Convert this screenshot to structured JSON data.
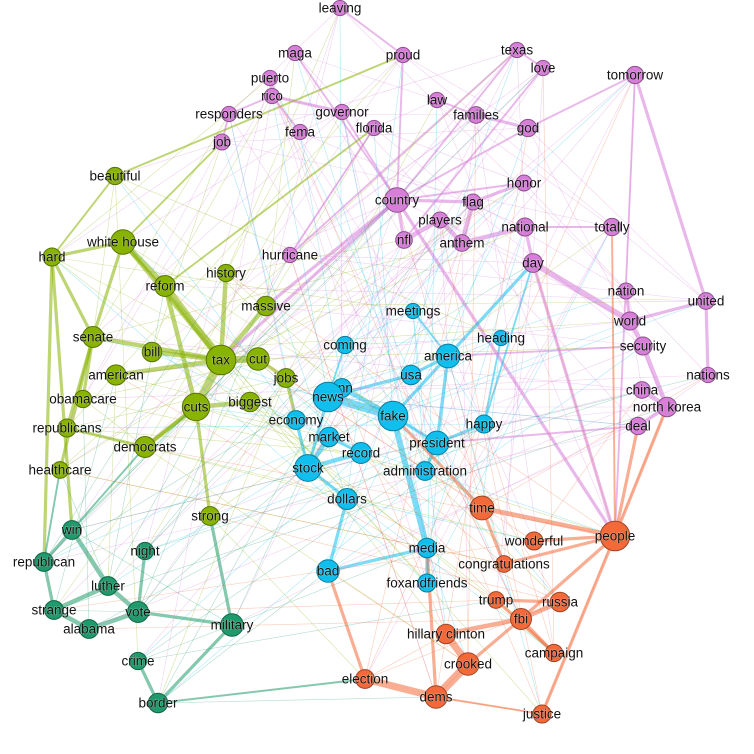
{
  "groups": {
    "purple": "#d77ed8",
    "green": "#88b300",
    "teal": "#1f9a6c",
    "blue": "#10bfee",
    "orange": "#f4693a"
  },
  "nodes": [
    {
      "label": "leaving",
      "group": "purple",
      "weight": 1
    },
    {
      "label": "maga",
      "group": "purple",
      "weight": 1
    },
    {
      "label": "proud",
      "group": "purple",
      "weight": 1
    },
    {
      "label": "texas",
      "group": "purple",
      "weight": 1
    },
    {
      "label": "love",
      "group": "purple",
      "weight": 1
    },
    {
      "label": "tomorrow",
      "group": "purple",
      "weight": 1.3
    },
    {
      "label": "puerto",
      "group": "purple",
      "weight": 1
    },
    {
      "label": "rico",
      "group": "purple",
      "weight": 1
    },
    {
      "label": "responders",
      "group": "purple",
      "weight": 1
    },
    {
      "label": "governor",
      "group": "purple",
      "weight": 1
    },
    {
      "label": "law",
      "group": "purple",
      "weight": 1
    },
    {
      "label": "families",
      "group": "purple",
      "weight": 1.2
    },
    {
      "label": "god",
      "group": "purple",
      "weight": 1.3
    },
    {
      "label": "fema",
      "group": "purple",
      "weight": 1
    },
    {
      "label": "florida",
      "group": "purple",
      "weight": 1
    },
    {
      "label": "job",
      "group": "purple",
      "weight": 1.1
    },
    {
      "label": "honor",
      "group": "purple",
      "weight": 1.1
    },
    {
      "label": "country",
      "group": "purple",
      "weight": 2.3
    },
    {
      "label": "flag",
      "group": "purple",
      "weight": 1.1
    },
    {
      "label": "players",
      "group": "purple",
      "weight": 1.1
    },
    {
      "label": "nfl",
      "group": "purple",
      "weight": 1.2
    },
    {
      "label": "anthem",
      "group": "purple",
      "weight": 1.2
    },
    {
      "label": "national",
      "group": "purple",
      "weight": 1.4
    },
    {
      "label": "totally",
      "group": "purple",
      "weight": 1.3
    },
    {
      "label": "day",
      "group": "purple",
      "weight": 1.5
    },
    {
      "label": "hurricane",
      "group": "purple",
      "weight": 1
    },
    {
      "label": "nation",
      "group": "purple",
      "weight": 1.1
    },
    {
      "label": "united",
      "group": "purple",
      "weight": 1.2
    },
    {
      "label": "world",
      "group": "purple",
      "weight": 1.4
    },
    {
      "label": "security",
      "group": "purple",
      "weight": 1.4
    },
    {
      "label": "nations",
      "group": "purple",
      "weight": 1
    },
    {
      "label": "china",
      "group": "purple",
      "weight": 1.2
    },
    {
      "label": "north korea",
      "group": "purple",
      "weight": 1.6
    },
    {
      "label": "deal",
      "group": "purple",
      "weight": 1.3
    },
    {
      "label": "beautiful",
      "group": "green",
      "weight": 1.3
    },
    {
      "label": "white house",
      "group": "green",
      "weight": 2.3
    },
    {
      "label": "hard",
      "group": "green",
      "weight": 1.4
    },
    {
      "label": "history",
      "group": "green",
      "weight": 1.3
    },
    {
      "label": "reform",
      "group": "green",
      "weight": 1.8
    },
    {
      "label": "massive",
      "group": "green",
      "weight": 1.6
    },
    {
      "label": "senate",
      "group": "green",
      "weight": 1.8
    },
    {
      "label": "bill",
      "group": "green",
      "weight": 1.6
    },
    {
      "label": "tax",
      "group": "green",
      "weight": 3
    },
    {
      "label": "cut",
      "group": "green",
      "weight": 2
    },
    {
      "label": "jobs",
      "group": "green",
      "weight": 1.5
    },
    {
      "label": "american",
      "group": "green",
      "weight": 1.7
    },
    {
      "label": "obamacare",
      "group": "green",
      "weight": 1.3
    },
    {
      "label": "cuts",
      "group": "green",
      "weight": 2.7
    },
    {
      "label": "biggest",
      "group": "green",
      "weight": 1.6
    },
    {
      "label": "republicans",
      "group": "green",
      "weight": 1.4
    },
    {
      "label": "democrats",
      "group": "green",
      "weight": 1.8
    },
    {
      "label": "healthcare",
      "group": "green",
      "weight": 1.2
    },
    {
      "label": "strong",
      "group": "green",
      "weight": 1.5
    },
    {
      "label": "win",
      "group": "teal",
      "weight": 1.5
    },
    {
      "label": "republican",
      "group": "teal",
      "weight": 1.5
    },
    {
      "label": "night",
      "group": "teal",
      "weight": 1.3
    },
    {
      "label": "luther",
      "group": "teal",
      "weight": 1.5
    },
    {
      "label": "strange",
      "group": "teal",
      "weight": 1.5
    },
    {
      "label": "vote",
      "group": "teal",
      "weight": 1.8
    },
    {
      "label": "alabama",
      "group": "teal",
      "weight": 1.5
    },
    {
      "label": "military",
      "group": "teal",
      "weight": 2
    },
    {
      "label": "crime",
      "group": "teal",
      "weight": 1.3
    },
    {
      "label": "border",
      "group": "teal",
      "weight": 1.6
    },
    {
      "label": "coming",
      "group": "blue",
      "weight": 1.3
    },
    {
      "label": "america",
      "group": "blue",
      "weight": 2.2
    },
    {
      "label": "usa",
      "group": "blue",
      "weight": 1.6
    },
    {
      "label": "cnn",
      "group": "blue",
      "weight": 1.5
    },
    {
      "label": "news",
      "group": "blue",
      "weight": 3
    },
    {
      "label": "fake",
      "group": "blue",
      "weight": 3
    },
    {
      "label": "economy",
      "group": "blue",
      "weight": 1.5
    },
    {
      "label": "market",
      "group": "blue",
      "weight": 1.6
    },
    {
      "label": "record",
      "group": "blue",
      "weight": 1.8
    },
    {
      "label": "president",
      "group": "blue",
      "weight": 2.2
    },
    {
      "label": "happy",
      "group": "blue",
      "weight": 1.4
    },
    {
      "label": "heading",
      "group": "blue",
      "weight": 1
    },
    {
      "label": "meetings",
      "group": "blue",
      "weight": 1
    },
    {
      "label": "administration",
      "group": "blue",
      "weight": 1.5
    },
    {
      "label": "stock",
      "group": "blue",
      "weight": 2.6
    },
    {
      "label": "dollars",
      "group": "blue",
      "weight": 1.8
    },
    {
      "label": "media",
      "group": "blue",
      "weight": 1.6
    },
    {
      "label": "bad",
      "group": "blue",
      "weight": 2
    },
    {
      "label": "foxandfriends",
      "group": "blue",
      "weight": 1.4
    },
    {
      "label": "time",
      "group": "orange",
      "weight": 2.2
    },
    {
      "label": "people",
      "group": "orange",
      "weight": 3
    },
    {
      "label": "wonderful",
      "group": "orange",
      "weight": 1.4
    },
    {
      "label": "congratulations",
      "group": "orange",
      "weight": 1.2
    },
    {
      "label": "trump",
      "group": "orange",
      "weight": 1.2
    },
    {
      "label": "russia",
      "group": "orange",
      "weight": 1.6
    },
    {
      "label": "fbi",
      "group": "orange",
      "weight": 1.8
    },
    {
      "label": "hillary clinton",
      "group": "orange",
      "weight": 1.6
    },
    {
      "label": "campaign",
      "group": "orange",
      "weight": 1.3
    },
    {
      "label": "crooked",
      "group": "orange",
      "weight": 2
    },
    {
      "label": "election",
      "group": "orange",
      "weight": 1.5
    },
    {
      "label": "dems",
      "group": "orange",
      "weight": 2
    },
    {
      "label": "justice",
      "group": "orange",
      "weight": 1.4
    }
  ],
  "edges": [
    [
      "tax",
      "cuts",
      6
    ],
    [
      "tax",
      "reform",
      5
    ],
    [
      "tax",
      "cut",
      5
    ],
    [
      "cuts",
      "biggest",
      3
    ],
    [
      "tax",
      "bill",
      3
    ],
    [
      "tax",
      "massive",
      3
    ],
    [
      "tax",
      "senate",
      3
    ],
    [
      "tax",
      "american",
      3
    ],
    [
      "tax",
      "history",
      3
    ],
    [
      "cuts",
      "democrats",
      3
    ],
    [
      "cuts",
      "reform",
      3
    ],
    [
      "white house",
      "reform",
      4
    ],
    [
      "white house",
      "tax",
      3
    ],
    [
      "white house",
      "hard",
      2
    ],
    [
      "white house",
      "senate",
      2
    ],
    [
      "hard",
      "win",
      2
    ],
    [
      "hard",
      "republican",
      2
    ],
    [
      "hard",
      "senate",
      2
    ],
    [
      "hard",
      "beautiful",
      1
    ],
    [
      "senate",
      "republicans",
      2
    ],
    [
      "senate",
      "obamacare",
      2
    ],
    [
      "senate",
      "healthcare",
      2
    ],
    [
      "republicans",
      "democrats",
      2
    ],
    [
      "democrats",
      "cuts",
      2
    ],
    [
      "jobs",
      "cut",
      2
    ],
    [
      "jobs",
      "economy",
      2
    ],
    [
      "economy",
      "stock",
      2
    ],
    [
      "market",
      "stock",
      3
    ],
    [
      "stock",
      "record",
      3
    ],
    [
      "stock",
      "dollars",
      2
    ],
    [
      "stock",
      "news",
      2
    ],
    [
      "fake",
      "news",
      6
    ],
    [
      "fake",
      "cnn",
      3
    ],
    [
      "fake",
      "media",
      4
    ],
    [
      "fake",
      "president",
      2
    ],
    [
      "news",
      "cnn",
      3
    ],
    [
      "news",
      "usa",
      2
    ],
    [
      "america",
      "usa",
      2
    ],
    [
      "america",
      "fake",
      2
    ],
    [
      "america",
      "president",
      2
    ],
    [
      "president",
      "administration",
      2
    ],
    [
      "president",
      "happy",
      2
    ],
    [
      "record",
      "market",
      2
    ],
    [
      "bad",
      "media",
      2
    ],
    [
      "bad",
      "dollars",
      2
    ],
    [
      "media",
      "foxandfriends",
      2
    ],
    [
      "coming",
      "news",
      1
    ],
    [
      "meetings",
      "america",
      1
    ],
    [
      "heading",
      "happy",
      1
    ],
    [
      "dems",
      "crooked",
      6
    ],
    [
      "dems",
      "election",
      5
    ],
    [
      "crooked",
      "hillary clinton",
      5
    ],
    [
      "hillary clinton",
      "fbi",
      3
    ],
    [
      "fbi",
      "russia",
      3
    ],
    [
      "trump",
      "russia",
      2
    ],
    [
      "trump",
      "campaign",
      2
    ],
    [
      "fbi",
      "campaign",
      2
    ],
    [
      "time",
      "people",
      3
    ],
    [
      "people",
      "wonderful",
      2
    ],
    [
      "people",
      "congratulations",
      2
    ],
    [
      "people",
      "fbi",
      2
    ],
    [
      "people",
      "deal",
      2
    ],
    [
      "people",
      "north korea",
      2
    ],
    [
      "people",
      "justice",
      2
    ],
    [
      "time",
      "congratulations",
      2
    ],
    [
      "time",
      "fake",
      2
    ],
    [
      "dems",
      "justice",
      1
    ],
    [
      "election",
      "bad",
      2
    ],
    [
      "dems",
      "media",
      2
    ],
    [
      "crooked",
      "fbi",
      2
    ],
    [
      "win",
      "luther",
      3
    ],
    [
      "luther",
      "strange",
      3
    ],
    [
      "strange",
      "alabama",
      3
    ],
    [
      "vote",
      "alabama",
      3
    ],
    [
      "vote",
      "luther",
      3
    ],
    [
      "republican",
      "win",
      2
    ],
    [
      "republican",
      "strange",
      2
    ],
    [
      "military",
      "vote",
      2
    ],
    [
      "military",
      "border",
      2
    ],
    [
      "crime",
      "border",
      2
    ],
    [
      "night",
      "vote",
      2
    ],
    [
      "military",
      "strong",
      2
    ],
    [
      "strong",
      "cuts",
      2
    ],
    [
      "win",
      "democrats",
      1
    ],
    [
      "border",
      "election",
      1
    ],
    [
      "republican",
      "healthcare",
      1
    ],
    [
      "country",
      "flag",
      2
    ],
    [
      "country",
      "nfl",
      2
    ],
    [
      "nfl",
      "players",
      3
    ],
    [
      "players",
      "anthem",
      3
    ],
    [
      "anthem",
      "flag",
      3
    ],
    [
      "national",
      "anthem",
      3
    ],
    [
      "national",
      "day",
      2
    ],
    [
      "honor",
      "flag",
      2
    ],
    [
      "day",
      "world",
      4
    ],
    [
      "world",
      "security",
      3
    ],
    [
      "security",
      "north korea",
      3
    ],
    [
      "north korea",
      "china",
      3
    ],
    [
      "united",
      "nations",
      2
    ],
    [
      "united",
      "tomorrow",
      2
    ],
    [
      "united",
      "world",
      2
    ],
    [
      "nation",
      "world",
      2
    ],
    [
      "deal",
      "north korea",
      2
    ],
    [
      "god",
      "families",
      2
    ],
    [
      "law",
      "families",
      1
    ],
    [
      "puerto",
      "rico",
      2
    ],
    [
      "rico",
      "governor",
      2
    ],
    [
      "rico",
      "responders",
      1
    ],
    [
      "fema",
      "rico",
      1
    ],
    [
      "florida",
      "hurricane",
      1
    ],
    [
      "job",
      "responders",
      1
    ],
    [
      "tomorrow",
      "god",
      1
    ],
    [
      "texas",
      "love",
      1
    ],
    [
      "proud",
      "country",
      1
    ],
    [
      "maga",
      "country",
      1
    ],
    [
      "leaving",
      "proud",
      1
    ],
    [
      "totally",
      "national",
      1
    ],
    [
      "country",
      "tax",
      2
    ],
    [
      "country",
      "people",
      2
    ],
    [
      "country",
      "massive",
      2
    ],
    [
      "god",
      "country",
      1
    ],
    [
      "america",
      "day",
      2
    ],
    [
      "beautiful",
      "proud",
      1
    ],
    [
      "white house",
      "job",
      1
    ],
    [
      "tomorrow",
      "people",
      1
    ],
    [
      "security",
      "america",
      1
    ],
    [
      "happy",
      "day",
      1
    ],
    [
      "honor",
      "country",
      1
    ],
    [
      "texas",
      "country",
      1
    ],
    [
      "love",
      "nfl",
      1
    ],
    [
      "governor",
      "country",
      1
    ],
    [
      "reform",
      "florida",
      1
    ],
    [
      "hurricane",
      "texas",
      1
    ],
    [
      "people",
      "totally",
      1
    ],
    [
      "day",
      "people",
      2
    ],
    [
      "deal",
      "president",
      1
    ]
  ]
}
